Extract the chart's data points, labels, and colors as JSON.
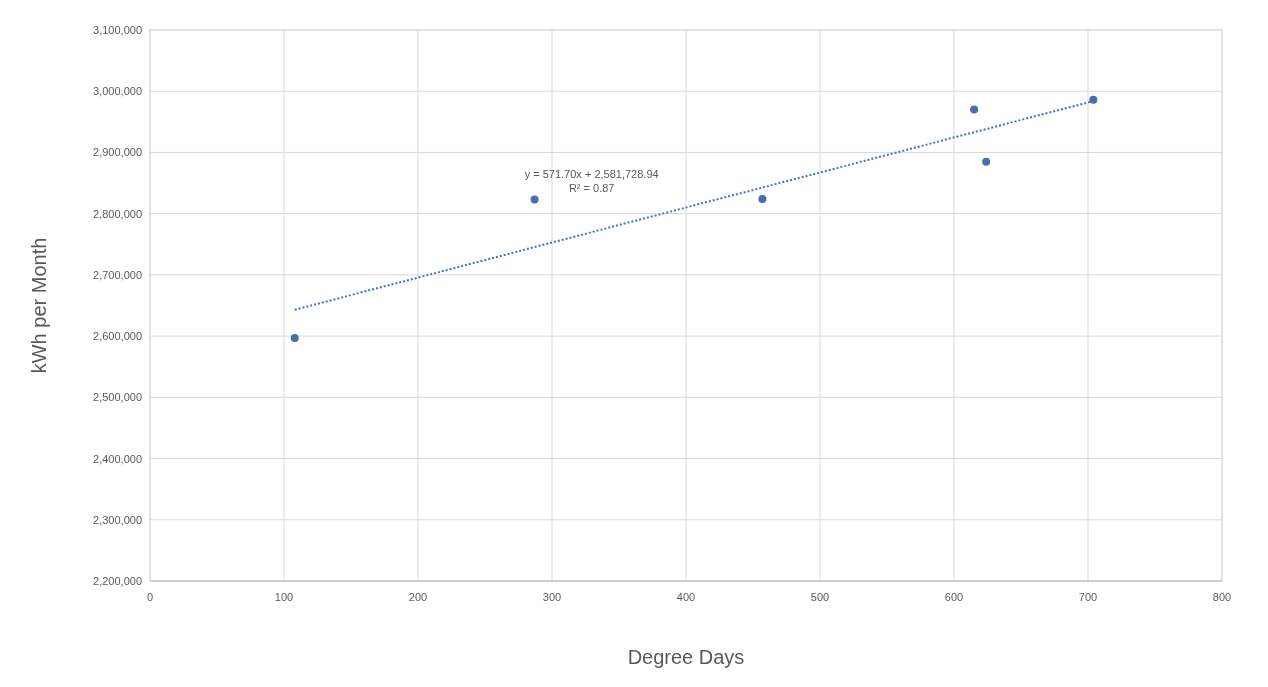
{
  "chart_data": {
    "type": "scatter",
    "xlabel": "Degree Days",
    "ylabel": "kWh per Month",
    "series": [
      {
        "color": "#4a6fa8",
        "x": [
          108,
          287,
          457,
          615,
          624,
          704
        ],
        "values": [
          2597000,
          2823000,
          2824000,
          2970000,
          2885000,
          2986000
        ],
        "marker": "circle"
      },
      {
        "type": "line",
        "color": "#4472c4",
        "x": [
          108,
          704
        ],
        "values": [
          2643000,
          2984000
        ],
        "line_style": "dotted",
        "marker": "none"
      }
    ],
    "annotations": [
      "y = 571.70x + 2,581,728.94",
      "R² = 0.87"
    ],
    "xlim": [
      0,
      800
    ],
    "xticks": [
      0,
      100,
      200,
      300,
      400,
      500,
      600,
      700,
      800
    ],
    "ylim": [
      2200000,
      3100000
    ],
    "yticks": [
      {
        "value": 2200000,
        "label": "2,200,000"
      },
      {
        "value": 2300000,
        "label": "2,300,000"
      },
      {
        "value": 2400000,
        "label": "2,400,000"
      },
      {
        "value": 2500000,
        "label": "2,500,000"
      },
      {
        "value": 2600000,
        "label": "2,600,000"
      },
      {
        "value": 2700000,
        "label": "2,700,000"
      },
      {
        "value": 2800000,
        "label": "2,800,000"
      },
      {
        "value": 2900000,
        "label": "2,900,000"
      },
      {
        "value": 3000000,
        "label": "3,000,000"
      },
      {
        "value": 3100000,
        "label": "3,100,000"
      }
    ],
    "grid": true
  }
}
